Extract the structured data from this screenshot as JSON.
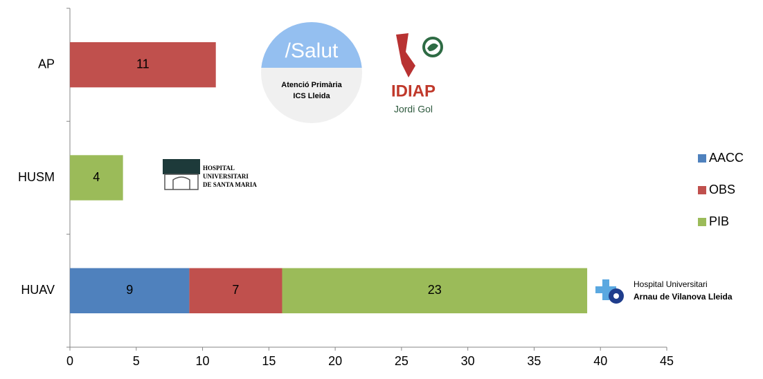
{
  "chart_data": {
    "type": "stacked_bar_horizontal",
    "categories": [
      "AP",
      "HUSM",
      "HUAV"
    ],
    "series": [
      {
        "name": "AACC",
        "color": "#4f81bd",
        "values": [
          null,
          null,
          9
        ]
      },
      {
        "name": "OBS",
        "color": "#c0504d",
        "values": [
          11,
          null,
          7
        ]
      },
      {
        "name": "PIB",
        "color": "#9bbb59",
        "values": [
          null,
          4,
          23
        ]
      }
    ],
    "xlim": [
      0,
      45
    ],
    "xticks": [
      0,
      5,
      10,
      15,
      20,
      25,
      30,
      35,
      40,
      45
    ],
    "legend": "right",
    "logos": [
      {
        "lines": [
          "/Salut",
          "Atenció Primària",
          "ICS Lleida"
        ]
      },
      {
        "lines": [
          "IDIAP",
          "Jordi Gol"
        ]
      },
      {
        "lines": [
          "HOSPITAL",
          "UNIVERSITARI",
          "DE SANTA MARIA"
        ]
      },
      {
        "lines": [
          "Hospital Universitari",
          "Arnau de Vilanova Lleida"
        ]
      }
    ]
  }
}
